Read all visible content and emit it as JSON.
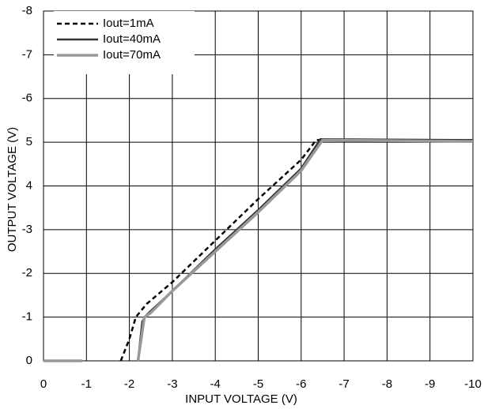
{
  "chart_data": {
    "type": "line",
    "x_label": "INPUT VOLTAGE (V)",
    "y_label": "OUTPUT VOLTAGE  (V)",
    "xlim": [
      0,
      -10
    ],
    "xticks": [
      0,
      -1,
      -2,
      -3,
      -4,
      -5,
      -6,
      -7,
      -8,
      -9,
      -10
    ],
    "ylim": [
      0,
      8
    ],
    "yticks": [
      0,
      {
        "value": 1,
        "label": "-1"
      },
      {
        "value": 2,
        "label": "-2"
      },
      {
        "value": 3,
        "label": "-3"
      },
      4,
      5,
      {
        "value": 6,
        "label": "-6"
      },
      {
        "value": 7,
        "label": "-7"
      },
      {
        "value": 8,
        "label": "-8"
      }
    ],
    "grid": true,
    "legend": "upper left",
    "series": [
      {
        "name": "Iout=1mA",
        "color": "#000000",
        "style": "dashed",
        "x": [
          -1.8,
          -2.0,
          -2.15,
          -2.4,
          -3,
          -4,
          -5,
          -6,
          -6.35,
          -10
        ],
        "values": [
          0,
          0.5,
          1.0,
          1.3,
          1.8,
          2.75,
          3.7,
          4.6,
          5.05,
          5.05
        ]
      },
      {
        "name": "Iout=40mA",
        "color": "#333333",
        "style": "solid",
        "x": [
          -2.2,
          -2.3,
          -2.4,
          -3,
          -4,
          -5,
          -6,
          -6.45,
          -10
        ],
        "values": [
          0,
          0.9,
          1.05,
          1.6,
          2.55,
          3.45,
          4.4,
          5.07,
          5.05
        ]
      },
      {
        "name": "Iout=70mA",
        "color": "#999999",
        "style": "thick",
        "x": [
          0,
          -0.9,
          -1.5,
          -2.2,
          -2.35,
          -2.5,
          -3,
          -4,
          -5,
          -6,
          -6.5,
          -10
        ],
        "values": [
          0,
          0,
          null,
          0,
          1.0,
          1.1,
          1.6,
          2.5,
          3.4,
          4.35,
          5.05,
          5.02
        ]
      }
    ]
  }
}
